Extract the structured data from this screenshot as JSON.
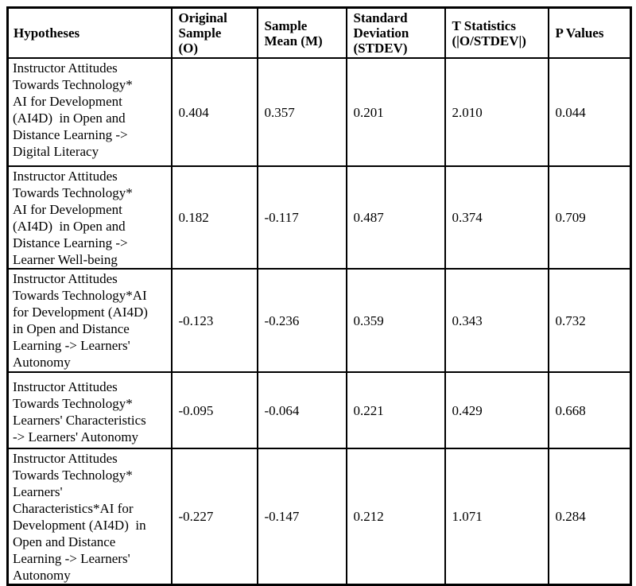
{
  "table": {
    "columns": [
      {
        "label": "Hypotheses"
      },
      {
        "label": "Original\nSample\n(O)"
      },
      {
        "label": "Sample\nMean (M)"
      },
      {
        "label": "Standard\nDeviation\n(STDEV)"
      },
      {
        "label": "T Statistics\n(|O/STDEV|)"
      },
      {
        "label": "P Values"
      }
    ],
    "rows": [
      {
        "hypothesis": "Instructor Attitudes\nTowards Technology*\nAI for Development\n(AI4D)  in Open and\nDistance Learning ->\nDigital Literacy",
        "original_sample": "0.404",
        "sample_mean": "0.357",
        "stdev": "0.201",
        "t_statistics": "2.010",
        "p_values": "0.044"
      },
      {
        "hypothesis": "Instructor Attitudes\nTowards Technology*\nAI for Development\n(AI4D)  in Open and\nDistance Learning ->\nLearner Well-being",
        "original_sample": "0.182",
        "sample_mean": "-0.117",
        "stdev": "0.487",
        "t_statistics": "0.374",
        "p_values": "0.709"
      },
      {
        "hypothesis": "Instructor Attitudes\nTowards Technology*AI\nfor Development (AI4D)\nin Open and Distance\nLearning -> Learners'\nAutonomy",
        "original_sample": "-0.123",
        "sample_mean": "-0.236",
        "stdev": "0.359",
        "t_statistics": "0.343",
        "p_values": "0.732"
      },
      {
        "hypothesis": "Instructor Attitudes\nTowards Technology*\nLearners' Characteristics\n-> Learners' Autonomy",
        "original_sample": "-0.095",
        "sample_mean": "-0.064",
        "stdev": "0.221",
        "t_statistics": "0.429",
        "p_values": "0.668"
      },
      {
        "hypothesis": "Instructor Attitudes\nTowards Technology*\nLearners'\nCharacteristics*AI for\nDevelopment (AI4D)  in\nOpen and Distance\nLearning -> Learners'\nAutonomy",
        "original_sample": "-0.227",
        "sample_mean": "-0.147",
        "stdev": "0.212",
        "t_statistics": "1.071",
        "p_values": "0.284"
      }
    ]
  }
}
